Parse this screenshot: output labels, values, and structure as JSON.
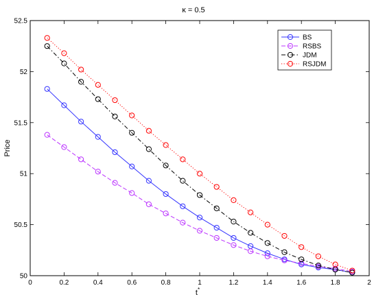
{
  "chart_data": {
    "type": "line",
    "title": "κ = 0.5",
    "xlabel": "t*",
    "xlabel_main": "t",
    "xlabel_sup": "*",
    "ylabel": "Price",
    "xlim": [
      0,
      2
    ],
    "ylim": [
      50,
      52.5
    ],
    "xticks": [
      0,
      0.2,
      0.4,
      0.6,
      0.8,
      1,
      1.2,
      1.4,
      1.6,
      1.8,
      2
    ],
    "xtick_labels": [
      "0",
      "0.2",
      "0.4",
      "0.6",
      "0.8",
      "1",
      "1.2",
      "1.4",
      "1.6",
      "1.8",
      "2"
    ],
    "yticks": [
      50,
      50.5,
      51,
      51.5,
      52,
      52.5
    ],
    "ytick_labels": [
      "50",
      "50.5",
      "51",
      "51.5",
      "52",
      "52.5"
    ],
    "grid": false,
    "legend_position": "top-right",
    "x": [
      0.1,
      0.2,
      0.3,
      0.4,
      0.5,
      0.6,
      0.7,
      0.8,
      0.9,
      1.0,
      1.1,
      1.2,
      1.3,
      1.4,
      1.5,
      1.6,
      1.7,
      1.8,
      1.9
    ],
    "series": [
      {
        "name": "BS",
        "color": "#3333ff",
        "line_style": "solid",
        "values": [
          51.83,
          51.67,
          51.51,
          51.36,
          51.21,
          51.07,
          50.93,
          50.8,
          50.68,
          50.57,
          50.47,
          50.37,
          50.29,
          50.22,
          50.16,
          50.11,
          50.08,
          50.06,
          50.03
        ]
      },
      {
        "name": "RSBS",
        "color": "#bb33ff",
        "line_style": "dashed",
        "values": [
          51.38,
          51.26,
          51.14,
          51.02,
          50.91,
          50.81,
          50.7,
          50.61,
          50.52,
          50.44,
          50.37,
          50.3,
          50.24,
          50.19,
          50.15,
          50.12,
          50.09,
          50.07,
          50.04
        ]
      },
      {
        "name": "JDM",
        "color": "#000000",
        "line_style": "dashdot",
        "values": [
          52.25,
          52.08,
          51.9,
          51.73,
          51.56,
          51.4,
          51.24,
          51.08,
          50.93,
          50.79,
          50.66,
          50.53,
          50.42,
          50.32,
          50.23,
          50.16,
          50.1,
          50.06,
          50.03
        ]
      },
      {
        "name": "RSJDM",
        "color": "#ff0000",
        "line_style": "dotted",
        "values": [
          52.33,
          52.18,
          52.02,
          51.87,
          51.72,
          51.57,
          51.42,
          51.28,
          51.14,
          51.0,
          50.87,
          50.74,
          50.62,
          50.5,
          50.39,
          50.28,
          50.19,
          50.11,
          50.05
        ]
      }
    ]
  }
}
